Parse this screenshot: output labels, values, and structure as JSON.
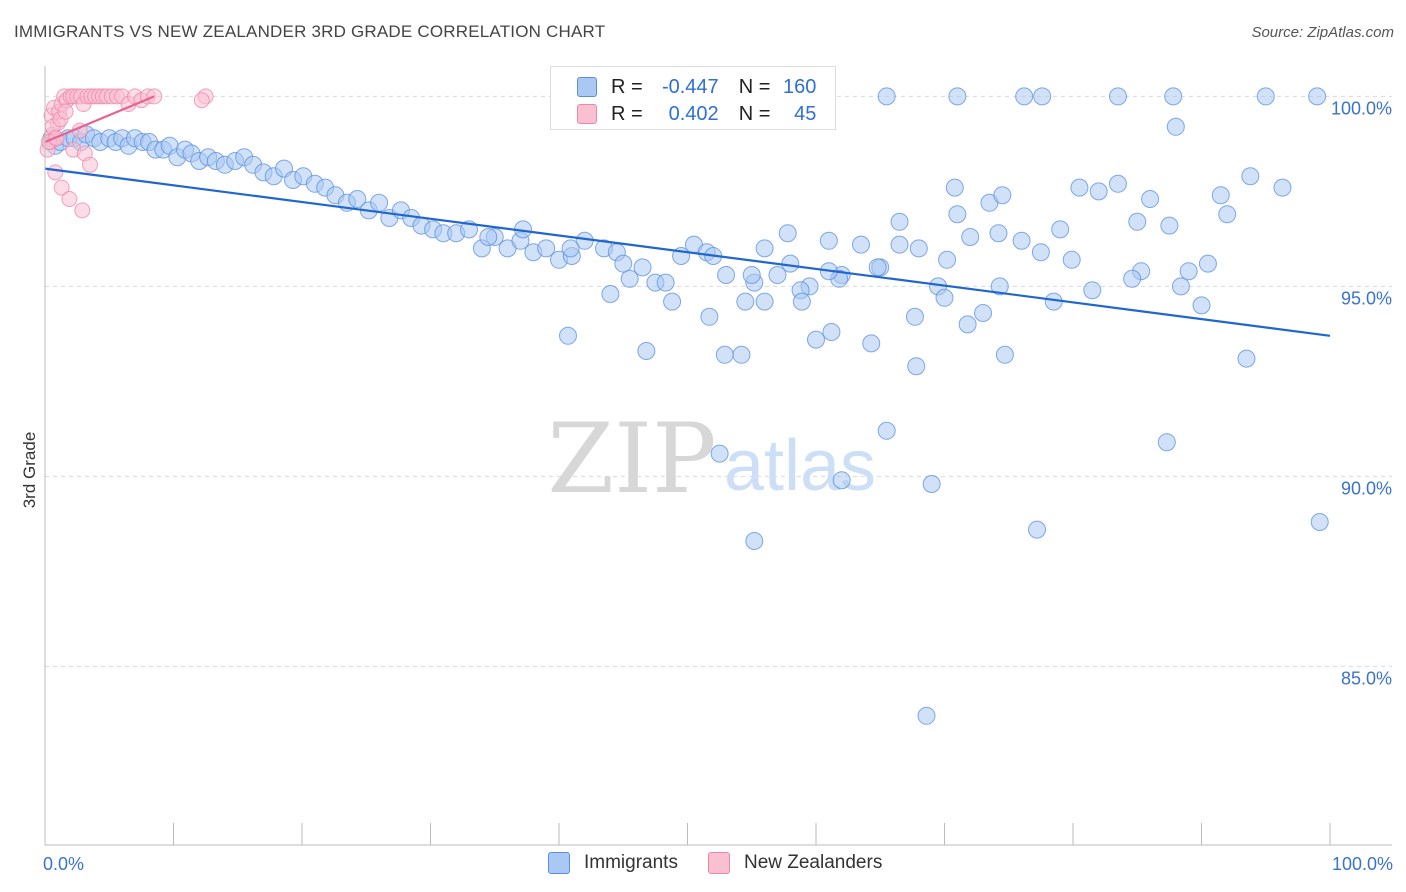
{
  "title": "IMMIGRANTS VS NEW ZEALANDER 3RD GRADE CORRELATION CHART",
  "source": "Source: ZipAtlas.com",
  "legend": {
    "r_label": "R =",
    "n_label": "N =",
    "series": [
      {
        "name": "Immigrants",
        "r": "-0.447",
        "n": "160"
      },
      {
        "name": "New Zealanders",
        "r": "0.402",
        "n": "45"
      }
    ]
  },
  "watermark": {
    "zip": "ZIP",
    "atlas": "atlas"
  },
  "colors": {
    "immigrants_fill": "#a9c8f3",
    "immigrants_stroke": "#5a8fde",
    "immigrants_line": "#1f66d1",
    "nz_fill": "#f9c0d2",
    "nz_stroke": "#ee86a9",
    "nz_line": "#e8638f",
    "axis_text": "#3a73cc",
    "grid": "#d9d9d9"
  },
  "chart_data": {
    "type": "scatter",
    "title": "IMMIGRANTS VS NEW ZEALANDER 3RD GRADE CORRELATION CHART",
    "xlabel": "",
    "ylabel": "3rd Grade",
    "xlim": [
      0,
      100
    ],
    "ylim": [
      80.3,
      100.8
    ],
    "x_tick_labels": [
      "0.0%",
      "100.0%"
    ],
    "y_ticks": [
      85,
      90,
      95,
      100
    ],
    "y_tick_labels": [
      "85.0%",
      "90.0%",
      "95.0%",
      "100.0%"
    ],
    "series": [
      {
        "name": "Immigrants",
        "r": -0.447,
        "n": 160,
        "trend": {
          "x": [
            0,
            100
          ],
          "y": [
            98.1,
            93.7
          ]
        },
        "points": [
          [
            0.5,
            98.9
          ],
          [
            0.8,
            98.7
          ],
          [
            1.2,
            98.8
          ],
          [
            1.8,
            98.9
          ],
          [
            2.3,
            98.9
          ],
          [
            2.8,
            98.8
          ],
          [
            3.2,
            99.0
          ],
          [
            3.8,
            98.9
          ],
          [
            4.3,
            98.8
          ],
          [
            5.0,
            98.9
          ],
          [
            5.5,
            98.8
          ],
          [
            6.0,
            98.9
          ],
          [
            6.5,
            98.7
          ],
          [
            7.0,
            98.9
          ],
          [
            7.6,
            98.8
          ],
          [
            8.1,
            98.8
          ],
          [
            8.6,
            98.6
          ],
          [
            9.2,
            98.6
          ],
          [
            9.7,
            98.7
          ],
          [
            10.3,
            98.4
          ],
          [
            10.9,
            98.6
          ],
          [
            11.4,
            98.5
          ],
          [
            12.0,
            98.3
          ],
          [
            12.7,
            98.4
          ],
          [
            13.3,
            98.3
          ],
          [
            14.0,
            98.2
          ],
          [
            14.8,
            98.3
          ],
          [
            15.5,
            98.4
          ],
          [
            16.2,
            98.2
          ],
          [
            17.0,
            98.0
          ],
          [
            17.8,
            97.9
          ],
          [
            18.6,
            98.1
          ],
          [
            19.3,
            97.8
          ],
          [
            20.1,
            97.9
          ],
          [
            21.0,
            97.7
          ],
          [
            21.8,
            97.6
          ],
          [
            22.6,
            97.4
          ],
          [
            23.5,
            97.2
          ],
          [
            24.3,
            97.3
          ],
          [
            25.2,
            97.0
          ],
          [
            26.0,
            97.2
          ],
          [
            26.8,
            96.8
          ],
          [
            27.7,
            97.0
          ],
          [
            28.5,
            96.8
          ],
          [
            29.3,
            96.6
          ],
          [
            30.2,
            96.5
          ],
          [
            31.0,
            96.4
          ],
          [
            32.0,
            96.4
          ],
          [
            33.0,
            96.5
          ],
          [
            34.0,
            96.0
          ],
          [
            35.0,
            96.3
          ],
          [
            36.0,
            96.0
          ],
          [
            37.0,
            96.2
          ],
          [
            38.0,
            95.9
          ],
          [
            39.0,
            96.0
          ],
          [
            40.0,
            95.7
          ],
          [
            41.0,
            95.8
          ],
          [
            42.0,
            96.2
          ],
          [
            43.5,
            96.0
          ],
          [
            44.5,
            95.9
          ],
          [
            45.5,
            95.2
          ],
          [
            46.5,
            95.5
          ],
          [
            47.5,
            95.1
          ],
          [
            49.5,
            95.8
          ],
          [
            50.5,
            96.1
          ],
          [
            51.5,
            95.9
          ],
          [
            53.0,
            95.3
          ],
          [
            54.5,
            94.6
          ],
          [
            56.0,
            96.0
          ],
          [
            57.0,
            95.3
          ],
          [
            58.0,
            95.6
          ],
          [
            59.5,
            95.0
          ],
          [
            61.0,
            96.2
          ],
          [
            62.0,
            95.3
          ],
          [
            63.5,
            96.1
          ],
          [
            65.0,
            95.5
          ],
          [
            66.5,
            96.7
          ],
          [
            68.0,
            96.0
          ],
          [
            69.5,
            95.0
          ],
          [
            71.0,
            96.9
          ],
          [
            72.0,
            96.3
          ],
          [
            73.5,
            97.2
          ],
          [
            74.5,
            97.4
          ],
          [
            76.0,
            96.2
          ],
          [
            77.5,
            95.9
          ],
          [
            79.0,
            96.5
          ],
          [
            80.5,
            97.6
          ],
          [
            82.0,
            97.5
          ],
          [
            83.5,
            97.7
          ],
          [
            85.0,
            96.7
          ],
          [
            86.0,
            97.3
          ],
          [
            87.5,
            96.6
          ],
          [
            89.0,
            95.4
          ],
          [
            90.5,
            95.6
          ],
          [
            92.0,
            96.9
          ],
          [
            65.5,
            100.0
          ],
          [
            71.0,
            100.0
          ],
          [
            76.2,
            100.0
          ],
          [
            77.6,
            100.0
          ],
          [
            83.5,
            100.0
          ],
          [
            87.8,
            100.0
          ],
          [
            95.0,
            100.0
          ],
          [
            99.0,
            100.0
          ],
          [
            88.0,
            99.2
          ],
          [
            34.5,
            96.3
          ],
          [
            37.2,
            96.5
          ],
          [
            40.9,
            96.0
          ],
          [
            45.0,
            95.6
          ],
          [
            48.3,
            95.1
          ],
          [
            52.0,
            95.8
          ],
          [
            55.2,
            95.1
          ],
          [
            58.8,
            94.9
          ],
          [
            61.8,
            95.2
          ],
          [
            64.8,
            95.5
          ],
          [
            67.7,
            94.2
          ],
          [
            70.0,
            94.7
          ],
          [
            73.0,
            94.3
          ],
          [
            74.7,
            93.2
          ],
          [
            44.0,
            94.8
          ],
          [
            48.8,
            94.6
          ],
          [
            51.7,
            94.2
          ],
          [
            55.0,
            95.3
          ],
          [
            56.0,
            94.6
          ],
          [
            58.9,
            94.6
          ],
          [
            61.2,
            93.8
          ],
          [
            64.3,
            93.5
          ],
          [
            70.2,
            95.7
          ],
          [
            71.8,
            94.0
          ],
          [
            74.3,
            95.0
          ],
          [
            78.5,
            94.6
          ],
          [
            81.5,
            94.9
          ],
          [
            85.3,
            95.4
          ],
          [
            88.4,
            95.0
          ],
          [
            90.0,
            94.5
          ],
          [
            93.5,
            93.1
          ],
          [
            40.7,
            93.7
          ],
          [
            46.8,
            93.3
          ],
          [
            52.9,
            93.2
          ],
          [
            54.2,
            93.2
          ],
          [
            60.0,
            93.6
          ],
          [
            67.8,
            92.9
          ],
          [
            62.0,
            89.9
          ],
          [
            65.5,
            91.2
          ],
          [
            69.0,
            89.8
          ],
          [
            52.5,
            90.6
          ],
          [
            77.2,
            88.6
          ],
          [
            87.3,
            90.9
          ],
          [
            55.2,
            88.3
          ],
          [
            68.6,
            83.7
          ],
          [
            99.2,
            88.8
          ],
          [
            70.8,
            97.6
          ],
          [
            74.2,
            96.4
          ],
          [
            57.8,
            96.4
          ],
          [
            61.0,
            95.4
          ],
          [
            66.5,
            96.1
          ],
          [
            79.9,
            95.7
          ],
          [
            84.6,
            95.2
          ],
          [
            91.5,
            97.4
          ],
          [
            93.8,
            97.9
          ],
          [
            96.3,
            97.6
          ]
        ]
      },
      {
        "name": "New Zealanders",
        "r": 0.402,
        "n": 45,
        "trend": {
          "x": [
            0,
            8.5
          ],
          "y": [
            98.8,
            100.0
          ]
        },
        "points": [
          [
            0.2,
            98.6
          ],
          [
            0.4,
            98.8
          ],
          [
            0.6,
            99.0
          ],
          [
            0.8,
            98.9
          ],
          [
            1.0,
            99.3
          ],
          [
            0.5,
            99.5
          ],
          [
            0.7,
            99.7
          ],
          [
            1.1,
            99.6
          ],
          [
            1.3,
            99.8
          ],
          [
            1.5,
            100.0
          ],
          [
            1.7,
            99.9
          ],
          [
            2.0,
            100.0
          ],
          [
            2.2,
            100.0
          ],
          [
            2.5,
            100.0
          ],
          [
            2.8,
            100.0
          ],
          [
            3.0,
            99.8
          ],
          [
            3.3,
            100.0
          ],
          [
            3.6,
            100.0
          ],
          [
            3.9,
            100.0
          ],
          [
            4.2,
            100.0
          ],
          [
            4.5,
            100.0
          ],
          [
            4.8,
            100.0
          ],
          [
            5.2,
            100.0
          ],
          [
            5.6,
            100.0
          ],
          [
            6.0,
            100.0
          ],
          [
            6.5,
            99.8
          ],
          [
            7.0,
            100.0
          ],
          [
            7.5,
            99.9
          ],
          [
            8.0,
            100.0
          ],
          [
            8.5,
            100.0
          ],
          [
            0.3,
            98.8
          ],
          [
            0.6,
            99.2
          ],
          [
            0.9,
            98.9
          ],
          [
            1.2,
            99.4
          ],
          [
            1.6,
            99.6
          ],
          [
            2.2,
            98.6
          ],
          [
            2.7,
            99.1
          ],
          [
            3.1,
            98.5
          ],
          [
            3.5,
            98.2
          ],
          [
            0.8,
            98.0
          ],
          [
            1.3,
            97.6
          ],
          [
            1.9,
            97.3
          ],
          [
            2.9,
            97.0
          ],
          [
            12.5,
            100.0
          ],
          [
            12.2,
            99.9
          ]
        ]
      }
    ]
  }
}
